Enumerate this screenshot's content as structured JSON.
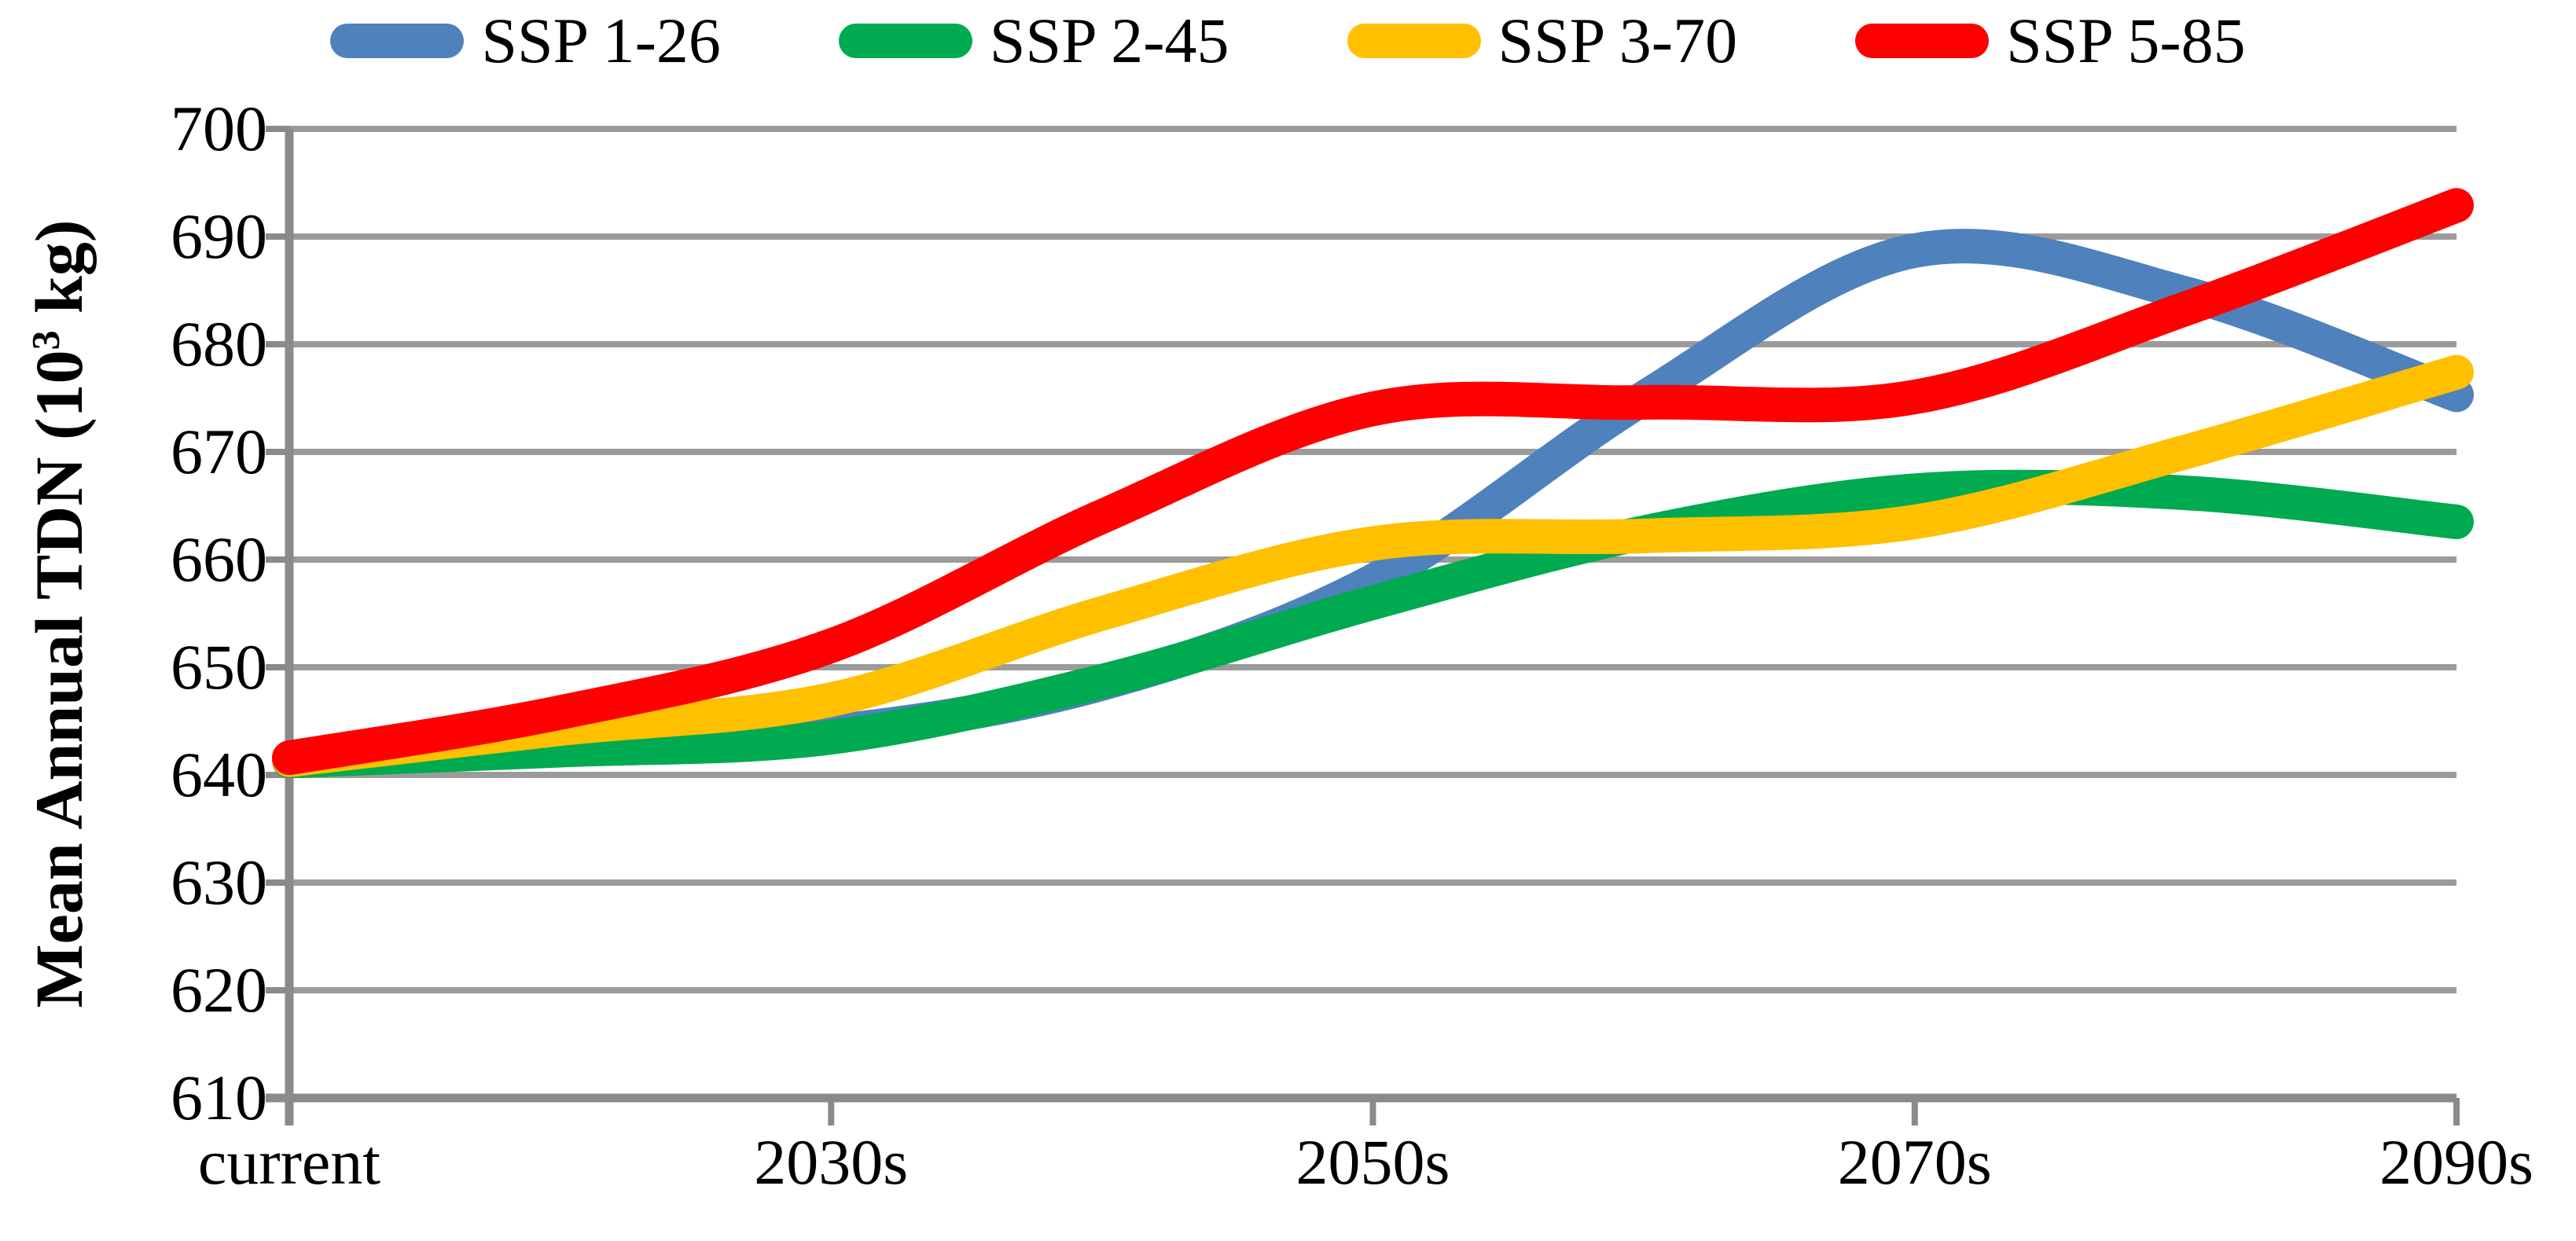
{
  "chart_data": {
    "type": "line",
    "title": "",
    "style": "smoothed lines, thick strokes, horizontal gray gridlines, legend on top",
    "categories": [
      "current",
      "2030s",
      "2050s",
      "2070s",
      "2090s"
    ],
    "x_axis": {
      "label": "",
      "tick_labels": [
        "current",
        "2030s",
        "2050s",
        "2070s",
        "2090s"
      ]
    },
    "y_axis": {
      "min": 610,
      "max": 700,
      "step": 10,
      "tick_labels": [
        "700",
        "690",
        "680",
        "670",
        "660",
        "650",
        "640",
        "630",
        "620",
        "610"
      ]
    },
    "ylabel": "Mean Annual TDN (10^3 kg)",
    "ylabel_parts": {
      "prefix": "Mean Annual TDN (10",
      "exponent": "3",
      "suffix": " kg)"
    },
    "grid": "horizontal gridlines every 10 units",
    "legend_position": "top",
    "sample_x_positions": [
      0,
      0.5,
      1,
      1.5,
      2,
      2.5,
      3,
      3.5,
      4
    ],
    "series": [
      {
        "name": "SSP 1-26",
        "color": "#4F81BD",
        "values_at_labels": [
          641.5,
          644,
          658,
          689,
          675.3
        ],
        "sample_values": [
          641.5,
          642.8,
          644,
          648.5,
          658,
          675,
          688.7,
          684.7,
          675.3
        ]
      },
      {
        "name": "SSP 2-45",
        "color": "#00AA50",
        "values_at_labels": [
          641.3,
          643.5,
          656,
          666.4,
          663.5
        ],
        "sample_values": [
          641.3,
          642.3,
          643.5,
          648.7,
          656,
          662.5,
          666.4,
          666.2,
          663.5
        ]
      },
      {
        "name": "SSP 3-70",
        "color": "#FFC000",
        "values_at_labels": [
          641.4,
          647,
          661.5,
          663.5,
          677.4
        ],
        "sample_values": [
          641.4,
          644.3,
          647,
          655,
          661.5,
          662.2,
          663.5,
          670,
          677.4
        ]
      },
      {
        "name": "SSP 5-85",
        "color": "#FF0000",
        "values_at_labels": [
          641.6,
          652,
          674,
          675.1,
          692.9
        ],
        "sample_values": [
          641.6,
          645.8,
          652,
          664,
          674,
          674.6,
          675.1,
          683.3,
          692.9
        ]
      }
    ],
    "colors": {
      "grid": "#9B9B9B",
      "axis": "#8A8A8A",
      "text": "#000000",
      "background": "#FFFFFF"
    }
  }
}
